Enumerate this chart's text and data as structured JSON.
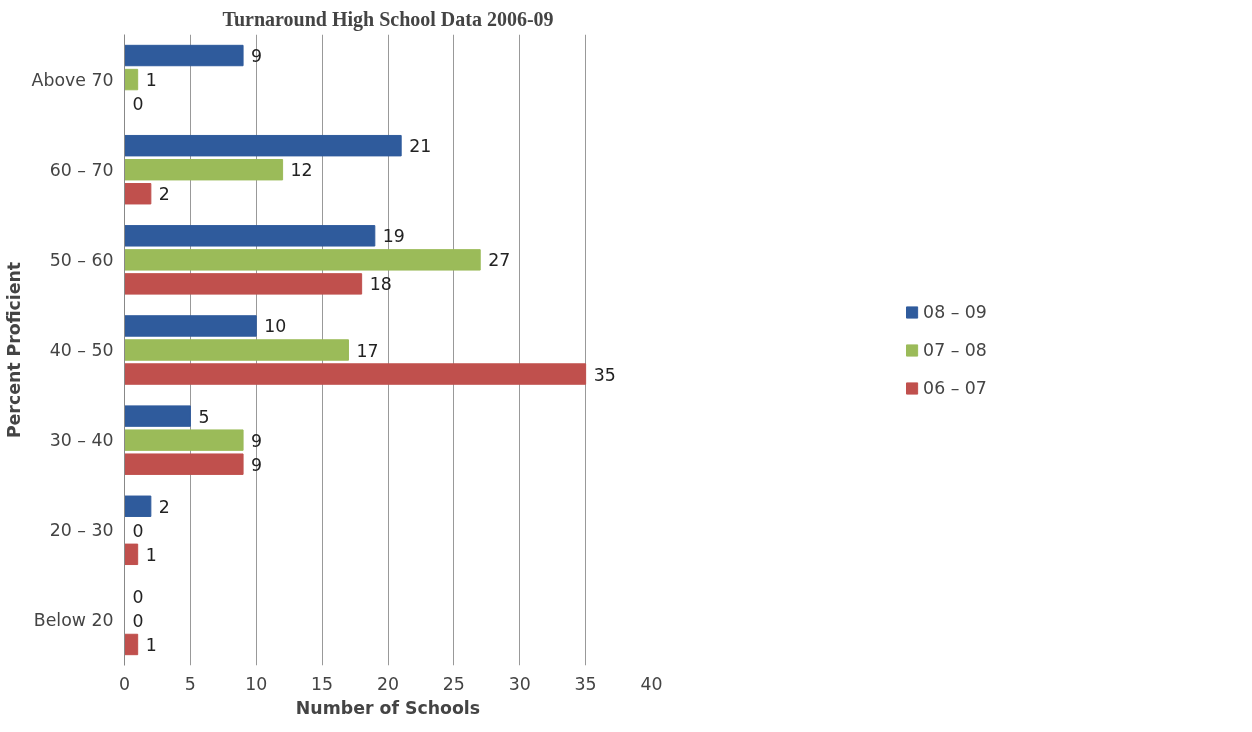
{
  "chart_data": {
    "type": "bar",
    "orientation": "horizontal",
    "title": "Turnaround High School Data 2006-09",
    "xlabel": "Number of Schools",
    "ylabel": "Percent Proficient",
    "categories": [
      "Above 70",
      "60 – 70",
      "50 – 60",
      "40 – 50",
      "30 – 40",
      "20 – 30",
      "Below 20"
    ],
    "series": [
      {
        "name": "08 – 09",
        "color": "#2f5b9c",
        "values": [
          9,
          21,
          19,
          10,
          5,
          2,
          0
        ]
      },
      {
        "name": "07 – 08",
        "color": "#9bbb59",
        "values": [
          1,
          12,
          27,
          17,
          9,
          0,
          0
        ]
      },
      {
        "name": "06 – 07",
        "color": "#c0504d",
        "values": [
          0,
          2,
          18,
          35,
          9,
          1,
          1
        ]
      }
    ],
    "xlim": [
      0,
      40
    ],
    "xticks": [
      0,
      5,
      10,
      15,
      20,
      25,
      30,
      35,
      40
    ],
    "grid": "x",
    "legend": "right",
    "data_labels": true
  }
}
